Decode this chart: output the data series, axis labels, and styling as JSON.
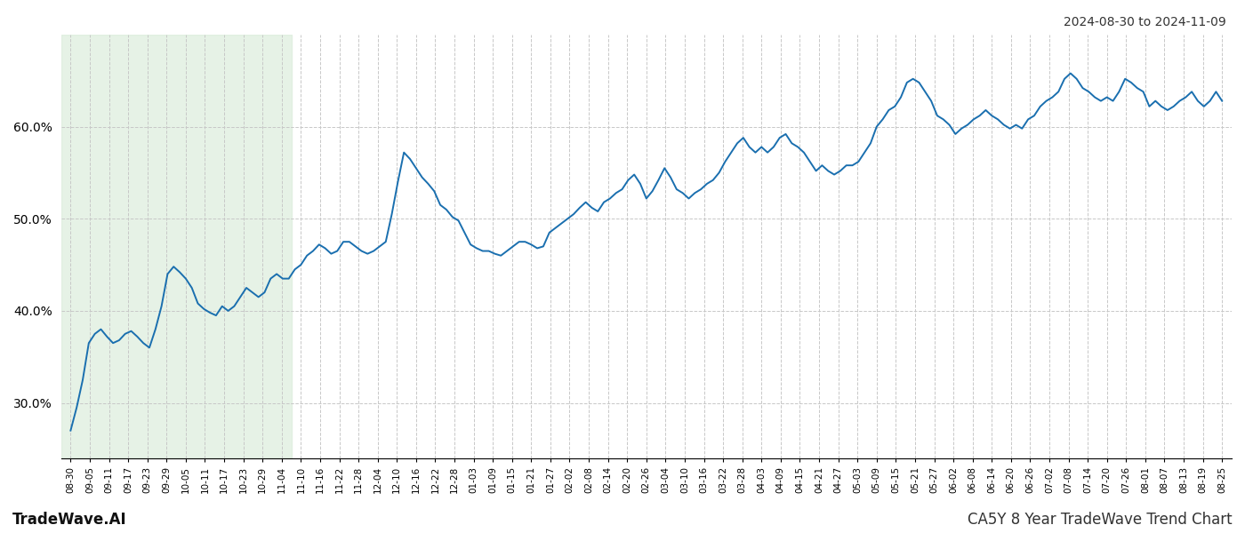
{
  "title_top_right": "2024-08-30 to 2024-11-09",
  "title_bottom_left": "TradeWave.AI",
  "title_bottom_right": "CA5Y 8 Year TradeWave Trend Chart",
  "line_color": "#1a6faf",
  "line_width": 1.4,
  "shade_color": "#d6ead6",
  "shade_alpha": 0.6,
  "background_color": "#ffffff",
  "grid_color": "#c8c8c8",
  "grid_style": "--",
  "ylim_min": 24.0,
  "ylim_max": 70.0,
  "yticks": [
    30.0,
    40.0,
    50.0,
    60.0
  ],
  "x_labels": [
    "08-30",
    "09-05",
    "09-11",
    "09-17",
    "09-23",
    "09-29",
    "10-05",
    "10-11",
    "10-17",
    "10-23",
    "10-29",
    "11-04",
    "11-10",
    "11-16",
    "11-22",
    "11-28",
    "12-04",
    "12-10",
    "12-16",
    "12-22",
    "12-28",
    "01-03",
    "01-09",
    "01-15",
    "01-21",
    "01-27",
    "02-02",
    "02-08",
    "02-14",
    "02-20",
    "02-26",
    "03-04",
    "03-10",
    "03-16",
    "03-22",
    "03-28",
    "04-03",
    "04-09",
    "04-15",
    "04-21",
    "04-27",
    "05-03",
    "05-09",
    "05-15",
    "05-21",
    "05-27",
    "06-02",
    "06-08",
    "06-14",
    "06-20",
    "06-26",
    "07-02",
    "07-08",
    "07-14",
    "07-20",
    "07-26",
    "08-01",
    "08-07",
    "08-13",
    "08-19",
    "08-25"
  ],
  "shade_start_label": "08-30",
  "shade_end_label": "11-04",
  "y_values": [
    27.0,
    29.5,
    32.5,
    36.5,
    37.5,
    38.0,
    37.2,
    36.5,
    36.8,
    37.5,
    37.8,
    37.2,
    36.5,
    36.0,
    38.0,
    40.5,
    44.0,
    44.8,
    44.2,
    43.5,
    42.5,
    40.8,
    40.2,
    39.8,
    39.5,
    40.5,
    40.0,
    40.5,
    41.5,
    42.5,
    42.0,
    41.5,
    42.0,
    43.5,
    44.0,
    43.5,
    43.5,
    44.5,
    45.0,
    46.0,
    46.5,
    47.2,
    46.8,
    46.2,
    46.5,
    47.5,
    47.5,
    47.0,
    46.5,
    46.2,
    46.5,
    47.0,
    47.5,
    50.5,
    54.0,
    57.2,
    56.5,
    55.5,
    54.5,
    53.8,
    53.0,
    51.5,
    51.0,
    50.2,
    49.8,
    48.5,
    47.2,
    46.8,
    46.5,
    46.5,
    46.2,
    46.0,
    46.5,
    47.0,
    47.5,
    47.5,
    47.2,
    46.8,
    47.0,
    48.5,
    49.0,
    49.5,
    50.0,
    50.5,
    51.2,
    51.8,
    51.2,
    50.8,
    51.8,
    52.2,
    52.8,
    53.2,
    54.2,
    54.8,
    53.8,
    52.2,
    53.0,
    54.2,
    55.5,
    54.5,
    53.2,
    52.8,
    52.2,
    52.8,
    53.2,
    53.8,
    54.2,
    55.0,
    56.2,
    57.2,
    58.2,
    58.8,
    57.8,
    57.2,
    57.8,
    57.2,
    57.8,
    58.8,
    59.2,
    58.2,
    57.8,
    57.2,
    56.2,
    55.2,
    55.8,
    55.2,
    54.8,
    55.2,
    55.8,
    55.8,
    56.2,
    57.2,
    58.2,
    60.0,
    60.8,
    61.8,
    62.2,
    63.2,
    64.8,
    65.2,
    64.8,
    63.8,
    62.8,
    61.2,
    60.8,
    60.2,
    59.2,
    59.8,
    60.2,
    60.8,
    61.2,
    61.8,
    61.2,
    60.8,
    60.2,
    59.8,
    60.2,
    59.8,
    60.8,
    61.2,
    62.2,
    62.8,
    63.2,
    63.8,
    65.2,
    65.8,
    65.2,
    64.2,
    63.8,
    63.2,
    62.8,
    63.2,
    62.8,
    63.8,
    65.2,
    64.8,
    64.2,
    63.8,
    62.2,
    62.8,
    62.2,
    61.8,
    62.2,
    62.8,
    63.2,
    63.8,
    62.8,
    62.2,
    62.8,
    63.8,
    62.8
  ]
}
